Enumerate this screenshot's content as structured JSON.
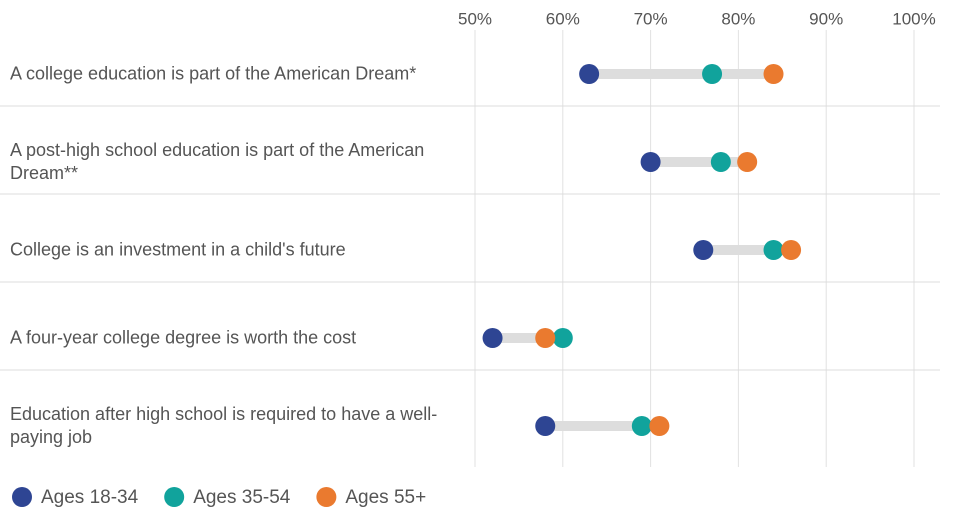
{
  "chart_data": {
    "type": "dot",
    "categories": [
      "A college education is part of the American Dream*",
      "A post-high school education is part of the American Dream**",
      "College is an investment in a child's future",
      "A four-year college degree is worth the cost",
      "Education after high school is required to have a well-paying job"
    ],
    "series": [
      {
        "name": "Ages 18-34",
        "color": "#2e4593",
        "values": [
          63,
          70,
          76,
          52,
          58
        ]
      },
      {
        "name": "Ages 35-54",
        "color": "#11a39c",
        "values": [
          77,
          78,
          84,
          60,
          69
        ]
      },
      {
        "name": "Ages 55+",
        "color": "#ea7a2f",
        "values": [
          84,
          81,
          86,
          58,
          71
        ]
      }
    ],
    "xlim": [
      50,
      100
    ],
    "xticks": [
      {
        "value": 50,
        "label": "50%"
      },
      {
        "value": 60,
        "label": "60%"
      },
      {
        "value": 70,
        "label": "70%"
      },
      {
        "value": 80,
        "label": "80%"
      },
      {
        "value": 90,
        "label": "90%"
      },
      {
        "value": 100,
        "label": "100%"
      }
    ],
    "grid": true,
    "legend": "bottom"
  }
}
